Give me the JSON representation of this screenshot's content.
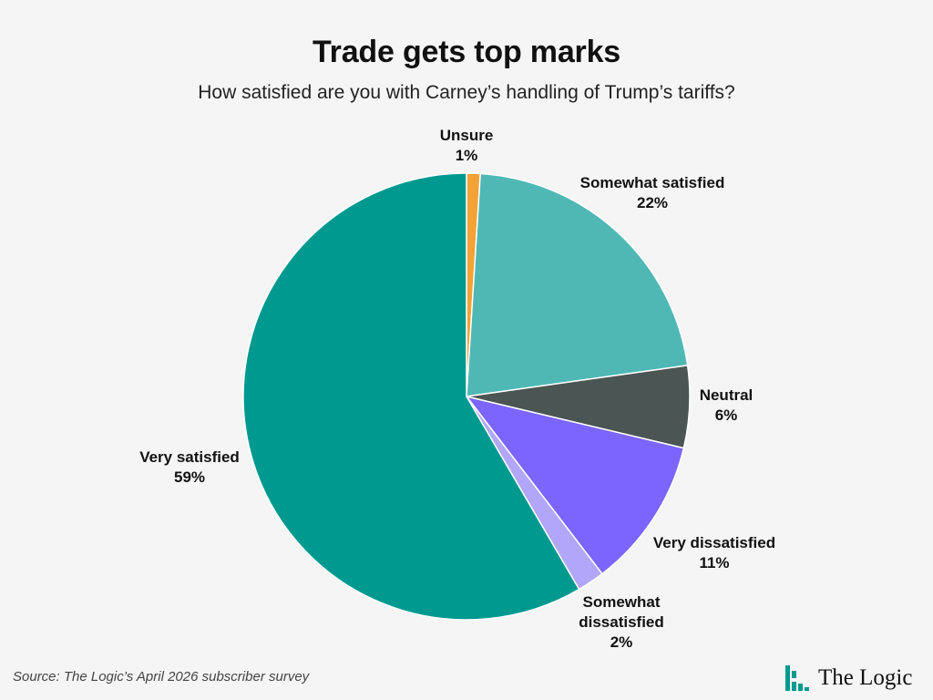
{
  "chart_data": {
    "type": "pie",
    "title": "Trade gets top marks",
    "subtitle": "How satisfied are you with Carney’s handling of Trump’s tariffs?",
    "slices": [
      {
        "label": [
          "Unsure"
        ],
        "value": 1,
        "display": "1%",
        "color": "#f4a138"
      },
      {
        "label": [
          "Somewhat satisfied"
        ],
        "value": 22,
        "display": "22%",
        "color": "#4fb8b4"
      },
      {
        "label": [
          "Neutral"
        ],
        "value": 6,
        "display": "6%",
        "color": "#4b5554"
      },
      {
        "label": [
          "Very dissatisfied"
        ],
        "value": 11,
        "display": "11%",
        "color": "#7c65fc"
      },
      {
        "label": [
          "Somewhat",
          "dissatisfied"
        ],
        "value": 2,
        "display": "2%",
        "color": "#b2a6fb"
      },
      {
        "label": [
          "Very satisfied"
        ],
        "value": 59,
        "display": "59%",
        "color": "#009990"
      }
    ]
  },
  "footer": {
    "source": "Source: The Logic’s April 2026 subscriber survey",
    "brand": "The Logic",
    "brand_color": "#00998f"
  }
}
